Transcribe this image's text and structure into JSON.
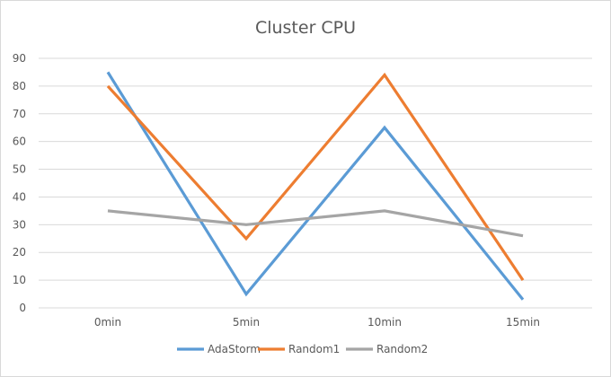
{
  "chart_data": {
    "type": "line",
    "title": "Cluster CPU",
    "xlabel": "",
    "ylabel": "",
    "categories": [
      "0min",
      "5min",
      "10min",
      "15min"
    ],
    "ylim": [
      0,
      90
    ],
    "yticks": [
      0,
      10,
      20,
      30,
      40,
      50,
      60,
      70,
      80,
      90
    ],
    "grid": true,
    "legend_position": "bottom",
    "series": [
      {
        "name": "AdaStorm",
        "color": "#5b9bd5",
        "values": [
          85,
          5,
          65,
          3
        ]
      },
      {
        "name": "Random1",
        "color": "#ed7d31",
        "values": [
          80,
          25,
          84,
          10
        ]
      },
      {
        "name": "Random2",
        "color": "#a5a5a5",
        "values": [
          35,
          30,
          35,
          26
        ]
      }
    ]
  }
}
